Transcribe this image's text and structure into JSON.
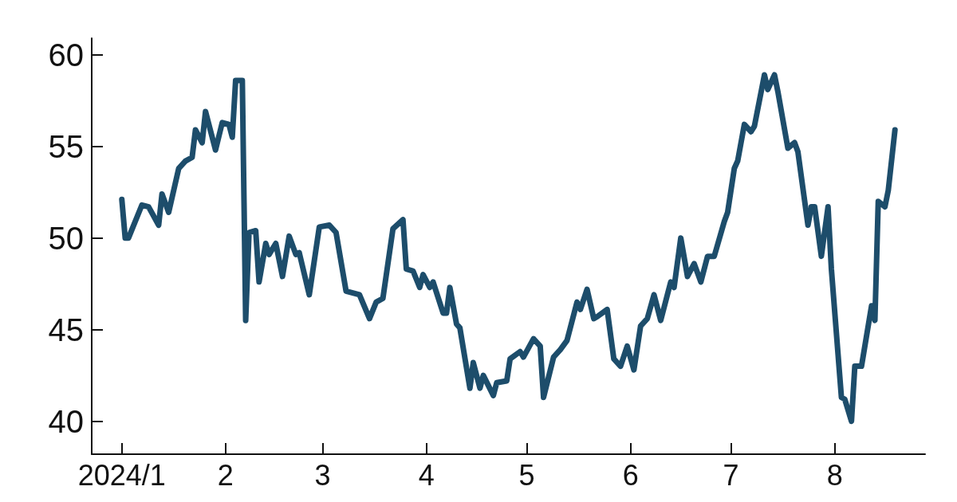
{
  "chart_data": {
    "type": "line",
    "x": [
      "2024-01-01",
      "2024-01-02",
      "2024-01-03",
      "2024-01-07",
      "2024-01-09",
      "2024-01-12",
      "2024-01-13",
      "2024-01-15",
      "2024-01-18",
      "2024-01-20",
      "2024-01-22",
      "2024-01-23",
      "2024-01-25",
      "2024-01-26",
      "2024-01-29",
      "2024-01-31",
      "2024-02-02",
      "2024-02-03",
      "2024-02-04",
      "2024-02-06",
      "2024-02-07",
      "2024-02-08",
      "2024-02-10",
      "2024-02-11",
      "2024-02-13",
      "2024-02-14",
      "2024-02-16",
      "2024-02-18",
      "2024-02-20",
      "2024-02-22",
      "2024-02-23",
      "2024-02-26",
      "2024-02-29",
      "2024-03-03",
      "2024-03-05",
      "2024-03-08",
      "2024-03-12",
      "2024-03-15",
      "2024-03-17",
      "2024-03-19",
      "2024-03-22",
      "2024-03-25",
      "2024-03-26",
      "2024-03-28",
      "2024-03-30",
      "2024-03-31",
      "2024-04-02",
      "2024-04-03",
      "2024-04-06",
      "2024-04-07",
      "2024-04-08",
      "2024-04-10",
      "2024-04-11",
      "2024-04-14",
      "2024-04-15",
      "2024-04-17",
      "2024-04-18",
      "2024-04-21",
      "2024-04-22",
      "2024-04-25",
      "2024-04-26",
      "2024-04-29",
      "2024-04-30",
      "2024-05-03",
      "2024-05-05",
      "2024-05-06",
      "2024-05-09",
      "2024-05-11",
      "2024-05-13",
      "2024-05-16",
      "2024-05-17",
      "2024-05-19",
      "2024-05-21",
      "2024-05-22",
      "2024-05-25",
      "2024-05-27",
      "2024-05-29",
      "2024-05-31",
      "2024-06-02",
      "2024-06-04",
      "2024-06-06",
      "2024-06-08",
      "2024-06-10",
      "2024-06-12",
      "2024-06-13",
      "2024-06-14",
      "2024-06-16",
      "2024-06-18",
      "2024-06-20",
      "2024-06-22",
      "2024-06-24",
      "2024-06-26",
      "2024-06-29",
      "2024-06-30",
      "2024-07-02",
      "2024-07-03",
      "2024-07-05",
      "2024-07-07",
      "2024-07-08",
      "2024-07-11",
      "2024-07-12",
      "2024-07-14",
      "2024-07-15",
      "2024-07-18",
      "2024-07-20",
      "2024-07-21",
      "2024-07-24",
      "2024-07-25",
      "2024-07-26",
      "2024-07-28",
      "2024-07-30",
      "2024-07-31",
      "2024-08-03",
      "2024-08-04",
      "2024-08-06",
      "2024-08-07",
      "2024-08-09",
      "2024-08-12",
      "2024-08-13",
      "2024-08-14",
      "2024-08-16",
      "2024-08-17",
      "2024-08-19"
    ],
    "series": [
      {
        "color": "#1d4d6b",
        "values": [
          52.1,
          50.0,
          50.0,
          51.8,
          51.7,
          50.7,
          52.4,
          51.4,
          53.8,
          54.2,
          54.4,
          55.9,
          55.2,
          56.9,
          54.8,
          56.3,
          56.2,
          55.5,
          58.6,
          58.6,
          45.5,
          50.3,
          50.4,
          47.6,
          49.7,
          49.1,
          49.7,
          47.9,
          50.1,
          49.1,
          49.2,
          46.9,
          50.6,
          50.7,
          50.3,
          47.1,
          46.9,
          45.6,
          46.5,
          46.7,
          50.5,
          51.0,
          48.3,
          48.2,
          47.3,
          48.0,
          47.3,
          47.6,
          45.9,
          45.9,
          47.3,
          45.3,
          45.1,
          41.8,
          43.2,
          41.8,
          42.5,
          41.4,
          42.1,
          42.2,
          43.4,
          43.8,
          43.5,
          44.5,
          44.1,
          41.3,
          43.5,
          43.9,
          44.4,
          46.5,
          46.1,
          47.2,
          45.6,
          45.7,
          46.1,
          43.4,
          43.0,
          44.1,
          42.8,
          45.2,
          45.6,
          46.9,
          45.5,
          46.9,
          47.6,
          47.3,
          50.0,
          47.9,
          48.6,
          47.6,
          49.0,
          49.0,
          50.9,
          51.4,
          53.8,
          54.2,
          56.2,
          55.8,
          56.1,
          58.9,
          58.1,
          58.9,
          58.0,
          54.9,
          55.2,
          54.7,
          50.7,
          51.7,
          51.7,
          49.0,
          51.7,
          48.3,
          41.3,
          41.2,
          40.0,
          43.0,
          43.0,
          46.3,
          45.5,
          52.0,
          51.7,
          52.6,
          55.9
        ]
      }
    ],
    "xlim": [
      "2023-12-23",
      "2024-08-28"
    ],
    "xticks": [
      {
        "value": "2024-01-01",
        "label": "2024/1"
      },
      {
        "value": "2024-02-01",
        "label": "2"
      },
      {
        "value": "2024-03-01",
        "label": "3"
      },
      {
        "value": "2024-04-01",
        "label": "4"
      },
      {
        "value": "2024-05-01",
        "label": "5"
      },
      {
        "value": "2024-06-01",
        "label": "6"
      },
      {
        "value": "2024-07-01",
        "label": "7"
      },
      {
        "value": "2024-08-01",
        "label": "8"
      }
    ],
    "ylim": [
      38.2,
      60.9
    ],
    "yticks": [
      40,
      45,
      50,
      55,
      60
    ],
    "grid": false,
    "marker": "none",
    "line_style": "solid"
  }
}
